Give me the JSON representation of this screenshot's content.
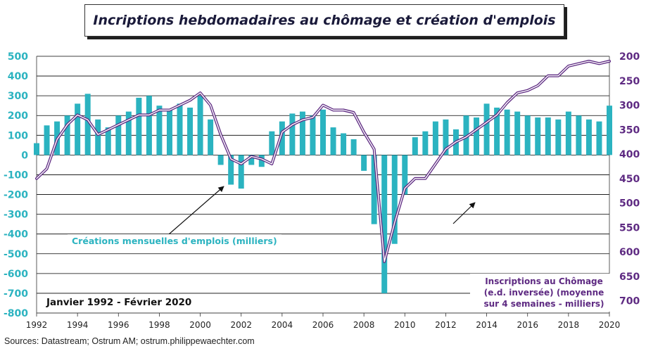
{
  "title": "Incriptions hebdomadaires au chômage et création d'emplois",
  "source": "Sources: Datastream; Ostrum AM; ostrum.philippewaechter.com",
  "annotations": {
    "jobs_label": "Créations mensuelles d'emplois (milliers)",
    "claims_label_1": "Inscriptions au Chômage",
    "claims_label_2": "(e.d. inversée) (moyenne",
    "claims_label_3": "sur 4 semaines - milliers)",
    "period": "Janvier 1992 - Février 2020"
  },
  "colors": {
    "bars": "#2bb3c0",
    "line": "#5e2a82",
    "left_axis_text": "#2bb3c0",
    "right_axis_text": "#5e2a82",
    "grid": "#000000"
  },
  "chart_data": {
    "type": "bar+line",
    "x_range": [
      1992,
      2020
    ],
    "x_ticks": [
      "1992",
      "1994",
      "1996",
      "1998",
      "2000",
      "2002",
      "2004",
      "2006",
      "2008",
      "2010",
      "2012",
      "2014",
      "2016",
      "2018",
      "2020"
    ],
    "left_axis": {
      "ylim": [
        -800,
        500
      ],
      "ticks": [
        "500",
        "400",
        "300",
        "200",
        "100",
        "0",
        "-100",
        "-200",
        "-300",
        "-400",
        "-500",
        "-600",
        "-700",
        "-800"
      ]
    },
    "right_axis": {
      "inverted": true,
      "ylim": [
        200,
        725
      ],
      "ticks": [
        "200",
        "250",
        "300",
        "350",
        "400",
        "450",
        "500",
        "550",
        "600",
        "650",
        "700"
      ]
    },
    "series": [
      {
        "name": "Créations mensuelles d'emplois (milliers)",
        "kind": "bar",
        "axis": "left",
        "x": [
          1992.0,
          1992.5,
          1993.0,
          1993.5,
          1994.0,
          1994.5,
          1995.0,
          1995.5,
          1996.0,
          1996.5,
          1997.0,
          1997.5,
          1998.0,
          1998.5,
          1999.0,
          1999.5,
          2000.0,
          2000.5,
          2001.0,
          2001.5,
          2002.0,
          2002.5,
          2003.0,
          2003.5,
          2004.0,
          2004.5,
          2005.0,
          2005.5,
          2006.0,
          2006.5,
          2007.0,
          2007.5,
          2008.0,
          2008.5,
          2009.0,
          2009.5,
          2010.0,
          2010.5,
          2011.0,
          2011.5,
          2012.0,
          2012.5,
          2013.0,
          2013.5,
          2014.0,
          2014.5,
          2015.0,
          2015.5,
          2016.0,
          2016.5,
          2017.0,
          2017.5,
          2018.0,
          2018.5,
          2019.0,
          2019.5,
          2020.0
        ],
        "values": [
          60,
          150,
          170,
          200,
          260,
          310,
          180,
          140,
          200,
          220,
          290,
          300,
          250,
          230,
          260,
          240,
          300,
          180,
          -50,
          -150,
          -170,
          -50,
          -60,
          120,
          170,
          210,
          220,
          200,
          230,
          140,
          110,
          80,
          -80,
          -350,
          -700,
          -450,
          -200,
          90,
          120,
          170,
          180,
          130,
          200,
          190,
          260,
          240,
          230,
          220,
          200,
          190,
          190,
          180,
          220,
          200,
          180,
          170,
          250
        ]
      },
      {
        "name": "Inscriptions au Chômage (e.d. inversée) (moyenne sur 4 semaines - milliers)",
        "kind": "line",
        "axis": "right",
        "x": [
          1992.0,
          1992.5,
          1993.0,
          1993.5,
          1994.0,
          1994.5,
          1995.0,
          1995.5,
          1996.0,
          1996.5,
          1997.0,
          1997.5,
          1998.0,
          1998.5,
          1999.0,
          1999.5,
          2000.0,
          2000.5,
          2001.0,
          2001.5,
          2002.0,
          2002.5,
          2003.0,
          2003.5,
          2004.0,
          2004.5,
          2005.0,
          2005.5,
          2006.0,
          2006.5,
          2007.0,
          2007.5,
          2008.0,
          2008.5,
          2009.0,
          2009.5,
          2010.0,
          2010.5,
          2011.0,
          2011.5,
          2012.0,
          2012.5,
          2013.0,
          2013.5,
          2014.0,
          2014.5,
          2015.0,
          2015.5,
          2016.0,
          2016.5,
          2017.0,
          2017.5,
          2018.0,
          2018.5,
          2019.0,
          2019.5,
          2020.0
        ],
        "values": [
          450,
          430,
          370,
          340,
          320,
          330,
          360,
          350,
          340,
          330,
          320,
          320,
          310,
          310,
          300,
          290,
          275,
          300,
          360,
          410,
          420,
          405,
          410,
          420,
          355,
          340,
          330,
          325,
          300,
          310,
          310,
          315,
          355,
          390,
          620,
          540,
          470,
          450,
          450,
          420,
          390,
          375,
          365,
          350,
          335,
          320,
          295,
          275,
          270,
          260,
          240,
          240,
          220,
          215,
          210,
          215,
          210
        ]
      }
    ]
  }
}
